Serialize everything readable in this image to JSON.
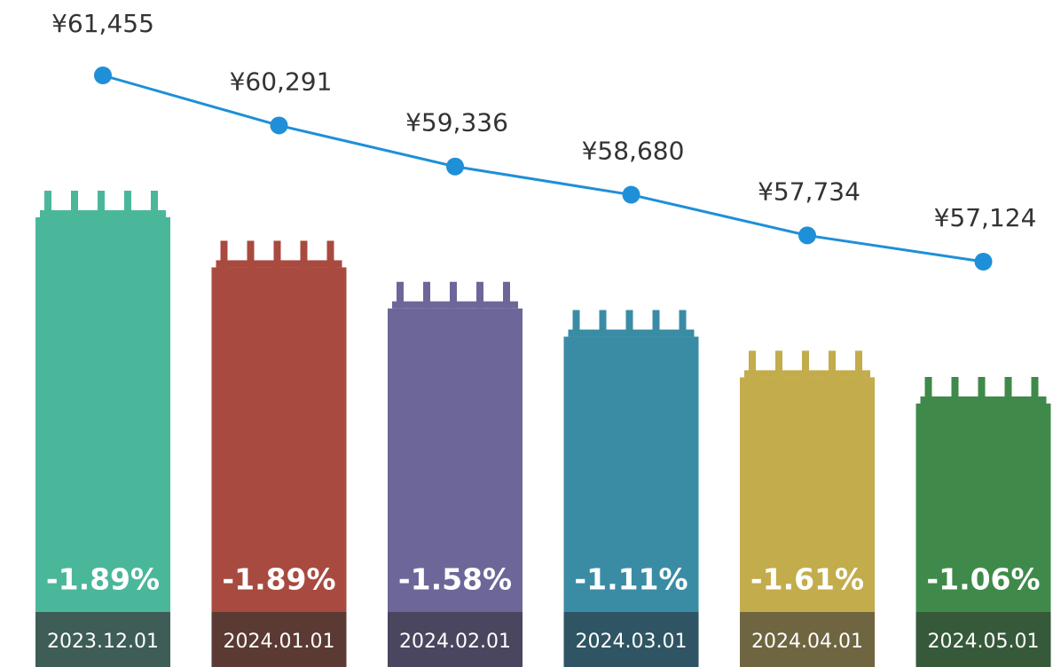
{
  "chart_data": {
    "type": "combo",
    "categories": [
      "2023.12.01",
      "2024.01.01",
      "2024.02.01",
      "2024.03.01",
      "2024.04.01",
      "2024.05.01"
    ],
    "series": [
      {
        "color": "#1f8fd8",
        "values": [
          61455,
          60291,
          59336,
          58680,
          57734,
          57124
        ],
        "value_labels": [
          "¥61,455",
          "¥60,291",
          "¥59,336",
          "¥58,680",
          "¥57,734",
          "¥57,124"
        ]
      }
    ],
    "changes": {
      "values": [
        -1.89,
        -1.89,
        -1.58,
        -1.11,
        -1.61,
        -1.06
      ],
      "value_labels": [
        "-1.89%",
        "-1.89%",
        "-1.58%",
        "-1.11%",
        "-1.61%",
        "-1.06%"
      ]
    },
    "bar_colors": [
      "#4bb79a",
      "#a84a3f",
      "#6d6799",
      "#3a8ca4",
      "#c3ac4b",
      "#3f8a4a"
    ],
    "band_colors": [
      "#3d5d56",
      "#5b3a34",
      "#4a465f",
      "#2f5564",
      "#6f6541",
      "#36593a"
    ]
  }
}
